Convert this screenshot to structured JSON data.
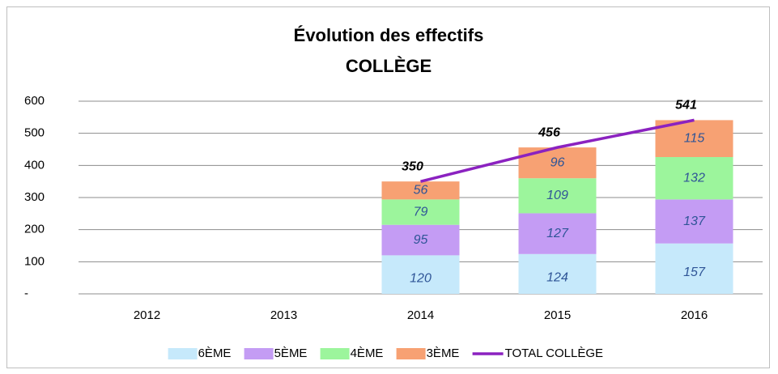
{
  "chart_data": {
    "type": "stacked_bar_line",
    "title": "Évolution des effectifs",
    "subtitle": "COLLÈGE",
    "categories": [
      "2012",
      "2013",
      "2014",
      "2015",
      "2016"
    ],
    "series": [
      {
        "name": "6ÈME",
        "color": "#c6e9fb",
        "values": [
          null,
          null,
          120,
          124,
          157
        ]
      },
      {
        "name": "5ÈME",
        "color": "#c49cf4",
        "values": [
          null,
          null,
          95,
          127,
          137
        ]
      },
      {
        "name": "4ÈME",
        "color": "#9cf59c",
        "values": [
          null,
          null,
          79,
          109,
          132
        ]
      },
      {
        "name": "3ÈME",
        "color": "#f7a173",
        "values": [
          null,
          null,
          56,
          96,
          115
        ]
      },
      {
        "name": "TOTAL COLLÈGE",
        "type": "line",
        "color": "#8b22c0",
        "values": [
          null,
          null,
          350,
          456,
          541
        ]
      }
    ],
    "ylim": [
      0,
      600
    ],
    "yticks": [
      {
        "value": 0,
        "label": "-"
      },
      100,
      200,
      300,
      400,
      500,
      600
    ],
    "grid": true,
    "legend": "bottom"
  }
}
